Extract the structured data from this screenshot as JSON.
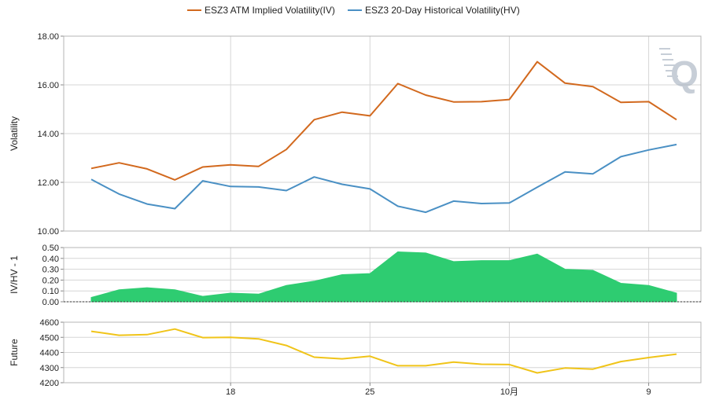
{
  "chart_data": [
    {
      "type": "line",
      "ylabel": "Volatility",
      "ylim": [
        10,
        18
      ],
      "yticks": [
        "10.00",
        "12.00",
        "14.00",
        "16.00",
        "18.00"
      ],
      "grid": true,
      "legend_position": "top-center",
      "series": [
        {
          "name": "ESZ3 ATM Implied Volatility(IV)",
          "color": "#d2691e",
          "values": [
            12.57,
            12.8,
            12.55,
            12.1,
            12.63,
            12.72,
            12.65,
            13.35,
            14.57,
            14.88,
            14.73,
            16.05,
            15.58,
            15.3,
            15.31,
            15.4,
            16.95,
            16.07,
            15.93,
            15.28,
            15.31,
            14.57
          ]
        },
        {
          "name": "ESZ3 20-Day Historical Volatility(HV)",
          "color": "#4a90c4",
          "values": [
            12.12,
            11.52,
            11.11,
            10.92,
            12.06,
            11.83,
            11.81,
            11.66,
            12.22,
            11.92,
            11.73,
            11.02,
            10.77,
            11.23,
            11.13,
            11.15,
            11.8,
            12.43,
            12.35,
            13.05,
            13.33,
            13.55
          ]
        }
      ]
    },
    {
      "type": "area",
      "ylabel": "IV/HV - 1",
      "ylim": [
        0,
        0.5
      ],
      "yticks": [
        "0.00",
        "0.10",
        "0.20",
        "0.30",
        "0.40",
        "0.50"
      ],
      "grid": true,
      "color": "#2ecc71",
      "values": [
        0.04,
        0.11,
        0.13,
        0.11,
        0.05,
        0.08,
        0.07,
        0.15,
        0.19,
        0.25,
        0.26,
        0.46,
        0.45,
        0.37,
        0.38,
        0.38,
        0.44,
        0.3,
        0.29,
        0.17,
        0.15,
        0.08
      ]
    },
    {
      "type": "line",
      "ylabel": "Future",
      "ylim": [
        4200,
        4600
      ],
      "yticks": [
        "4200",
        "4300",
        "4400",
        "4500",
        "4600"
      ],
      "grid": true,
      "color": "#f0c419",
      "values": [
        4540,
        4514,
        4518,
        4555,
        4498,
        4500,
        4490,
        4446,
        4369,
        4358,
        4375,
        4312,
        4312,
        4336,
        4322,
        4320,
        4265,
        4297,
        4290,
        4340,
        4366,
        4389
      ]
    }
  ],
  "xaxis": {
    "count": 22,
    "labels": [
      {
        "index": 5,
        "text": "18"
      },
      {
        "index": 10,
        "text": "25"
      },
      {
        "index": 15,
        "text": "10月"
      },
      {
        "index": 20,
        "text": "9"
      }
    ]
  },
  "watermark": {
    "text": "Q",
    "color": "#9aa7b8"
  }
}
